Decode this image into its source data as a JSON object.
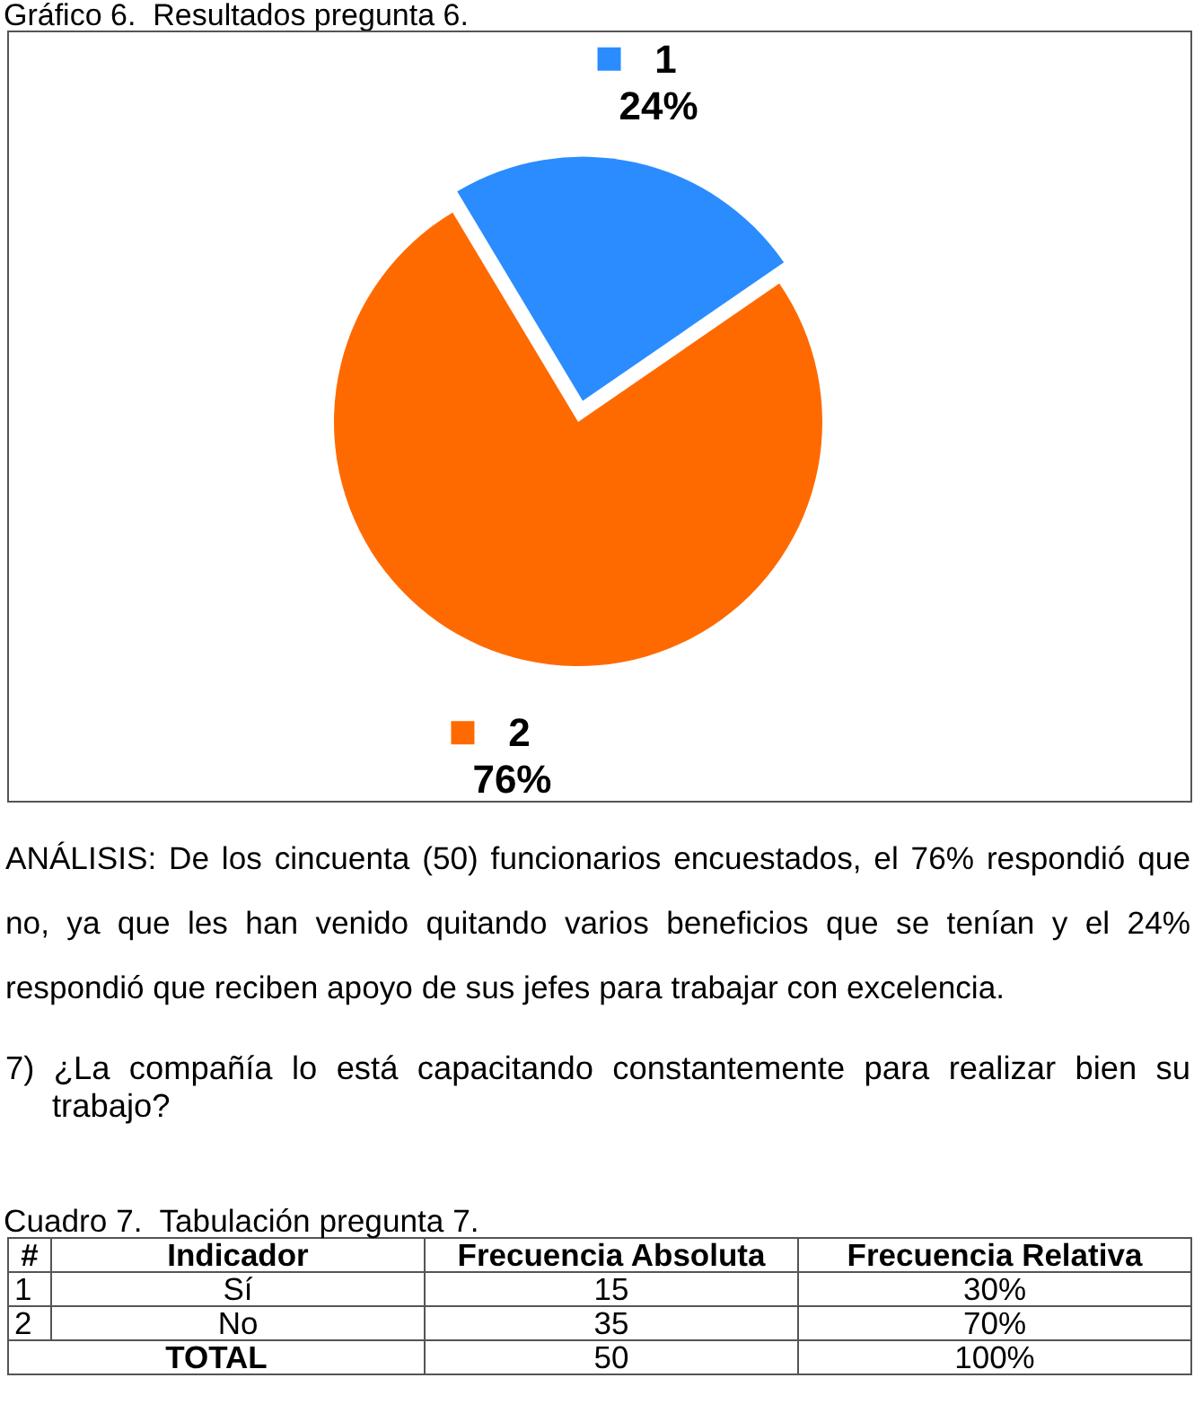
{
  "chart_data": [
    {
      "type": "pie",
      "title": "Gráfico 6.  Resultados pregunta 6.",
      "categories": [
        "1",
        "2"
      ],
      "values": [
        24,
        76
      ],
      "colors": [
        "#2a8cff",
        "#ff6a00"
      ],
      "value_labels": [
        "24%",
        "76%"
      ],
      "legend": "top",
      "annotations": [
        "ANÁLISIS: De los cincuenta (50) funcionarios encuestados, el 76% respondió que no, ya que les han venido quitando varios beneficios que se tenían y el 24% respondió que reciben apoyo de sus jefes para trabajar con excelencia.",
        "7) ¿La compañía lo está capacitando constantemente para realizar bien su trabajo?"
      ]
    },
    {
      "type": "other",
      "title": "Cuadro 7.  Tabulación pregunta 7.",
      "annotations": [
        "#",
        "Indicador",
        "Frecuencia Absoluta",
        "Frecuencia Relativa",
        "1",
        "Sí",
        "15",
        "30%",
        "2",
        "No",
        "35",
        "70%",
        "TOTAL",
        "50",
        "100%"
      ]
    }
  ]
}
